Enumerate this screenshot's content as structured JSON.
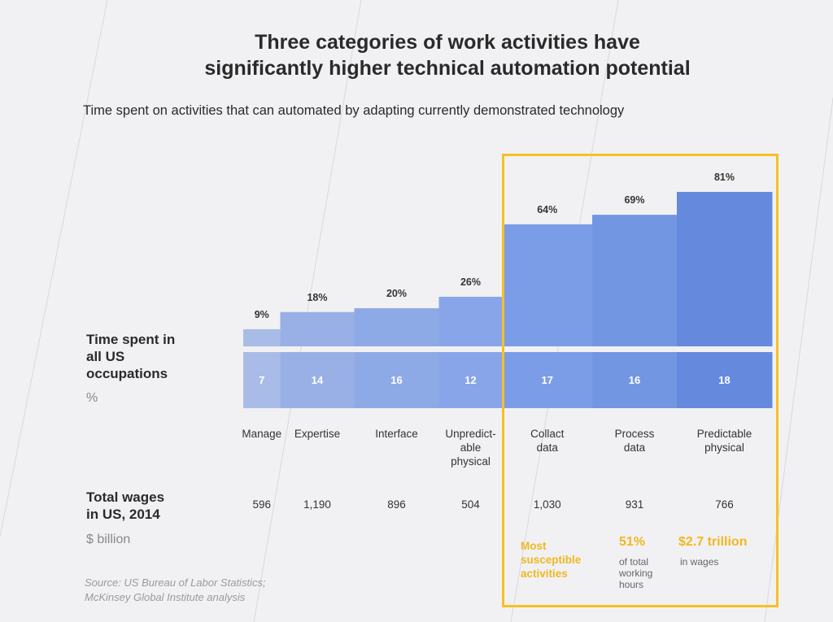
{
  "title_line1": "Three categories of work activities have",
  "title_line2": "significantly higher technical automation potential",
  "subtitle": "Time spent on activities that can automated by adapting currently demonstrated technology",
  "row1_label": [
    "Time spent in",
    "all US",
    "occupations"
  ],
  "row1_unit": "%",
  "row2_label": [
    "Total wages",
    "in US, 2014"
  ],
  "row2_unit": "$ billion",
  "source": [
    "Source: US Bureau of Labor Statistics;",
    "McKinsey Global Institute analysis"
  ],
  "chart_data": {
    "type": "bar",
    "title": "Time spent on activities that can automated by adapting currently demonstrated technology",
    "categories": [
      [
        "Manage"
      ],
      [
        "Expertise"
      ],
      [
        "Interface"
      ],
      [
        "Unpredict-",
        "able",
        "physical"
      ],
      [
        "Collact",
        "data"
      ],
      [
        "Process",
        "data"
      ],
      [
        "Predictable",
        "physical"
      ]
    ],
    "automation_labels": [
      "9%",
      "18%",
      "20%",
      "26%",
      "64%",
      "69%",
      "81%"
    ],
    "automation_potential_pct": [
      9,
      18,
      20,
      26,
      64,
      69,
      81
    ],
    "time_spent_pct": [
      7,
      14,
      16,
      12,
      17,
      16,
      18
    ],
    "total_wages_billion": [
      "596",
      "1,190",
      "896",
      "504",
      "1,030",
      "931",
      "766"
    ],
    "highlight_categories": [
      "Collact data",
      "Process data",
      "Predictable physical"
    ],
    "ylim": [
      0,
      81
    ]
  },
  "highlight": {
    "label": [
      "Most",
      "susceptible",
      "activities"
    ],
    "hours_value": "51%",
    "hours_caption": [
      "of total",
      "working",
      "hours"
    ],
    "wages_value": "$2.7 trillion",
    "wages_caption": "in wages"
  },
  "colors": {
    "bars": [
      "#a9bce8",
      "#98b0e6",
      "#8eaae6",
      "#87a5e8",
      "#7b9de8",
      "#7396e3",
      "#6589dc"
    ],
    "highlight": "#f8c021",
    "background": "#f1f1f3"
  }
}
